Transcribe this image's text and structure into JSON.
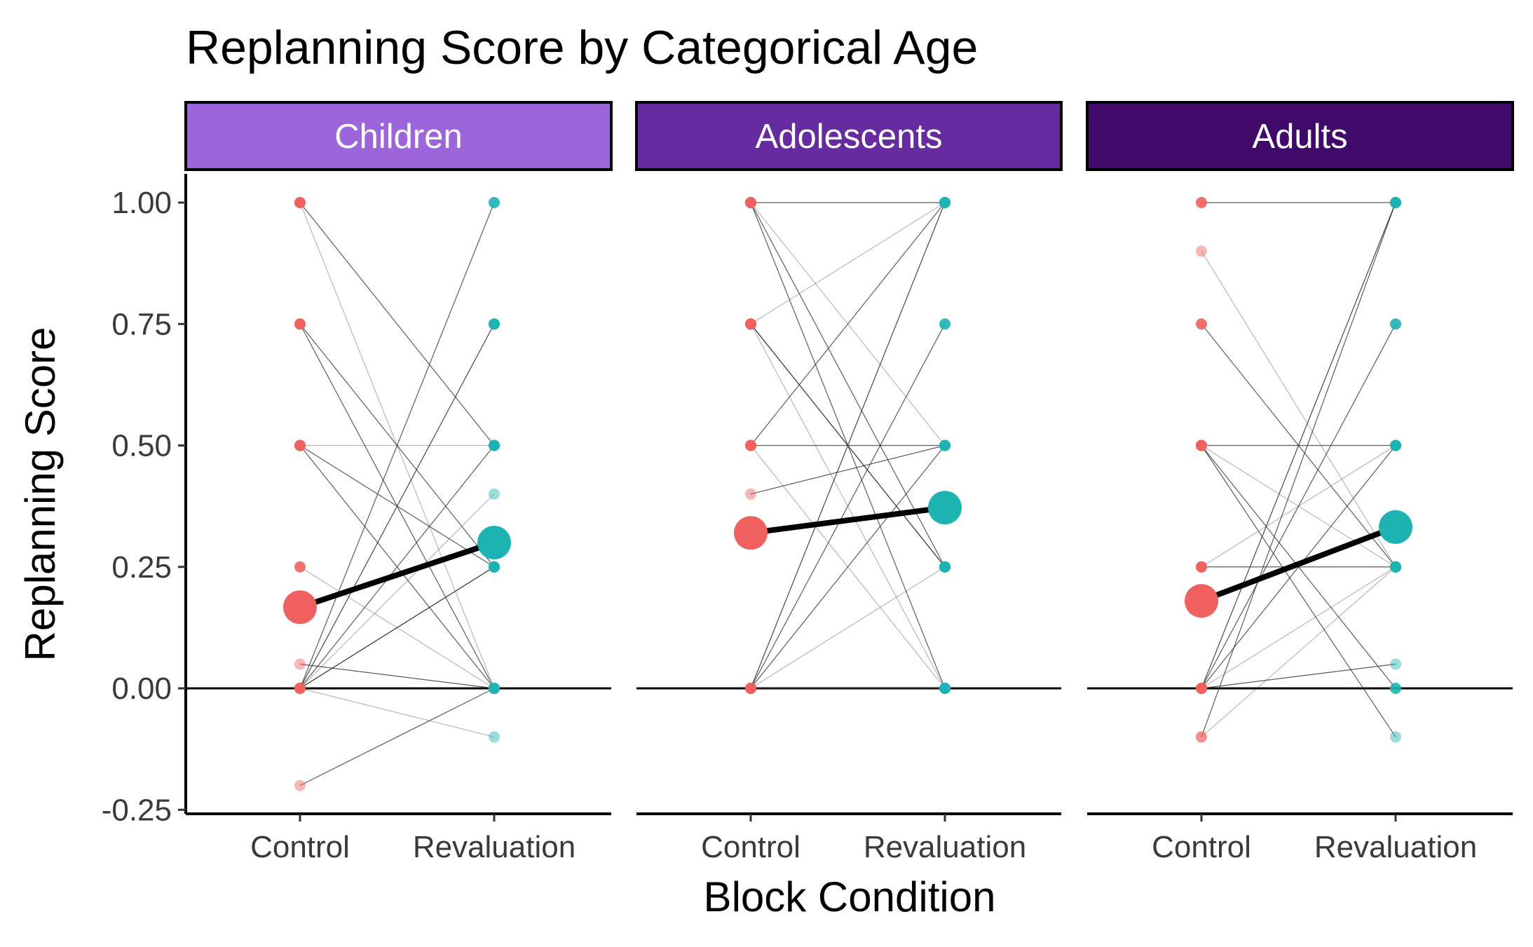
{
  "chart_data": {
    "type": "line",
    "title": "Replanning Score by Categorical Age",
    "xlabel": "Block Condition",
    "ylabel": "Replanning Score",
    "categories": [
      "Control",
      "Revaluation"
    ],
    "ylim": [
      -0.26,
      1.06
    ],
    "y_ticks": [
      1.0,
      0.75,
      0.5,
      0.25,
      0.0,
      -0.25
    ],
    "y_tick_labels": [
      "1.00",
      "0.75",
      "0.50",
      "0.25",
      "0.00",
      "-0.25"
    ],
    "reference_line_y": 0,
    "grid": false,
    "legend": "none",
    "colors": {
      "control": "#F0605E",
      "revaluation": "#1EB3B3",
      "mean_line": "#000000",
      "individual_line": "#333333"
    },
    "panels": [
      {
        "label": "Children",
        "strip_color": "#9C65DA",
        "mean": {
          "Control": 0.167,
          "Revaluation": 0.3
        },
        "pairs": [
          {
            "control": 1.0,
            "revaluation": 0.5
          },
          {
            "control": 1.0,
            "revaluation": 0.0
          },
          {
            "control": 0.75,
            "revaluation": 0.25
          },
          {
            "control": 0.75,
            "revaluation": 0.0
          },
          {
            "control": 0.5,
            "revaluation": 0.5
          },
          {
            "control": 0.5,
            "revaluation": 0.0
          },
          {
            "control": 0.5,
            "revaluation": 0.25
          },
          {
            "control": 0.25,
            "revaluation": 0.0
          },
          {
            "control": 0.05,
            "revaluation": 0.0
          },
          {
            "control": 0.0,
            "revaluation": 1.0
          },
          {
            "control": 0.0,
            "revaluation": 0.75
          },
          {
            "control": 0.0,
            "revaluation": 0.75
          },
          {
            "control": 0.0,
            "revaluation": 0.5
          },
          {
            "control": 0.0,
            "revaluation": 0.4
          },
          {
            "control": 0.0,
            "revaluation": 0.25
          },
          {
            "control": 0.0,
            "revaluation": 0.25
          },
          {
            "control": 0.0,
            "revaluation": -0.1
          },
          {
            "control": -0.2,
            "revaluation": 0.0
          }
        ]
      },
      {
        "label": "Adolescents",
        "strip_color": "#652B9F",
        "mean": {
          "Control": 0.32,
          "Revaluation": 0.372
        },
        "pairs": [
          {
            "control": 1.0,
            "revaluation": 1.0
          },
          {
            "control": 1.0,
            "revaluation": 0.5
          },
          {
            "control": 1.0,
            "revaluation": 0.25
          },
          {
            "control": 1.0,
            "revaluation": 0.0
          },
          {
            "control": 0.75,
            "revaluation": 1.0
          },
          {
            "control": 0.75,
            "revaluation": 0.25
          },
          {
            "control": 0.75,
            "revaluation": 0.25
          },
          {
            "control": 0.75,
            "revaluation": 0.0
          },
          {
            "control": 0.5,
            "revaluation": 1.0
          },
          {
            "control": 0.5,
            "revaluation": 0.5
          },
          {
            "control": 0.5,
            "revaluation": 0.0
          },
          {
            "control": 0.4,
            "revaluation": 0.5
          },
          {
            "control": 0.0,
            "revaluation": 1.0
          },
          {
            "control": 0.0,
            "revaluation": 1.0
          },
          {
            "control": 0.0,
            "revaluation": 0.75
          },
          {
            "control": 0.0,
            "revaluation": 0.5
          },
          {
            "control": 0.0,
            "revaluation": 0.25
          },
          {
            "control": 0.0,
            "revaluation": 0.0
          }
        ]
      },
      {
        "label": "Adults",
        "strip_color": "#3F0A6A",
        "mean": {
          "Control": 0.18,
          "Revaluation": 0.332
        },
        "pairs": [
          {
            "control": 1.0,
            "revaluation": 1.0
          },
          {
            "control": 0.9,
            "revaluation": 0.25
          },
          {
            "control": 0.75,
            "revaluation": 0.25
          },
          {
            "control": 0.5,
            "revaluation": 0.5
          },
          {
            "control": 0.5,
            "revaluation": 0.25
          },
          {
            "control": 0.5,
            "revaluation": 0.0
          },
          {
            "control": 0.5,
            "revaluation": -0.1
          },
          {
            "control": 0.25,
            "revaluation": 0.5
          },
          {
            "control": 0.25,
            "revaluation": 0.25
          },
          {
            "control": 0.0,
            "revaluation": 1.0
          },
          {
            "control": 0.0,
            "revaluation": 1.0
          },
          {
            "control": 0.0,
            "revaluation": 0.75
          },
          {
            "control": 0.0,
            "revaluation": 0.5
          },
          {
            "control": 0.0,
            "revaluation": 0.25
          },
          {
            "control": 0.0,
            "revaluation": 0.05
          },
          {
            "control": -0.1,
            "revaluation": 1.0
          },
          {
            "control": -0.1,
            "revaluation": 0.25
          }
        ]
      }
    ]
  }
}
